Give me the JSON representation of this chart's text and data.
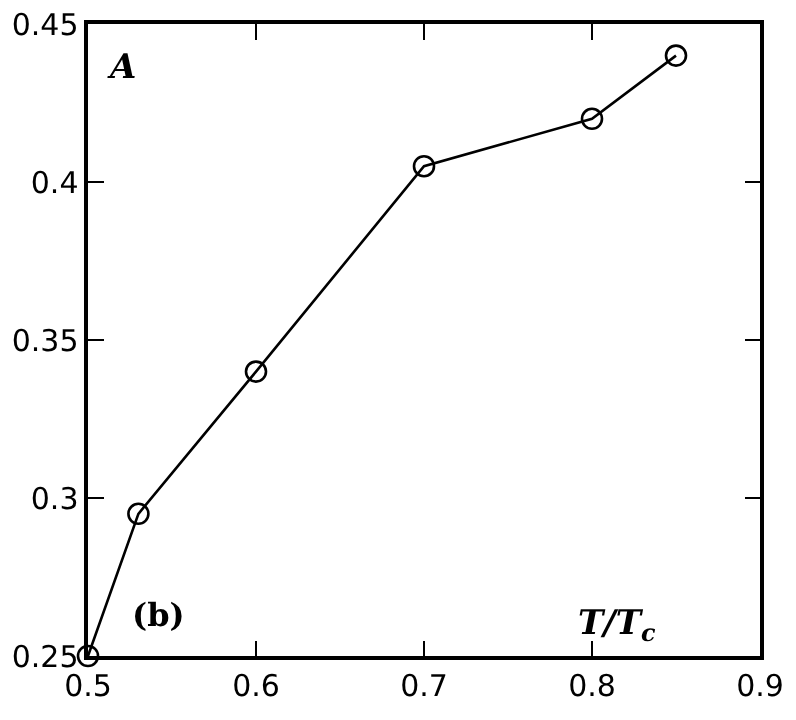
{
  "chart_data": {
    "type": "line",
    "xlabel": "T/T$_{c}$",
    "ylabel": "A",
    "annotations": [
      "(b)"
    ],
    "x": [
      0.5,
      0.53,
      0.6,
      0.7,
      0.8,
      0.85
    ],
    "series": [
      {
        "color": "#000000",
        "values": [
          0.25,
          0.295,
          0.34,
          0.405,
          0.42,
          0.44
        ]
      }
    ],
    "xlim": [
      0.5,
      0.9
    ],
    "xticks": [
      0.5,
      0.6,
      0.7,
      0.8,
      0.9
    ],
    "ylim": [
      0.25,
      0.45
    ],
    "yticks": [
      0.25,
      0.3,
      0.35,
      0.4,
      0.45
    ],
    "marker": "circle",
    "line_style": "solid",
    "grid": false
  }
}
